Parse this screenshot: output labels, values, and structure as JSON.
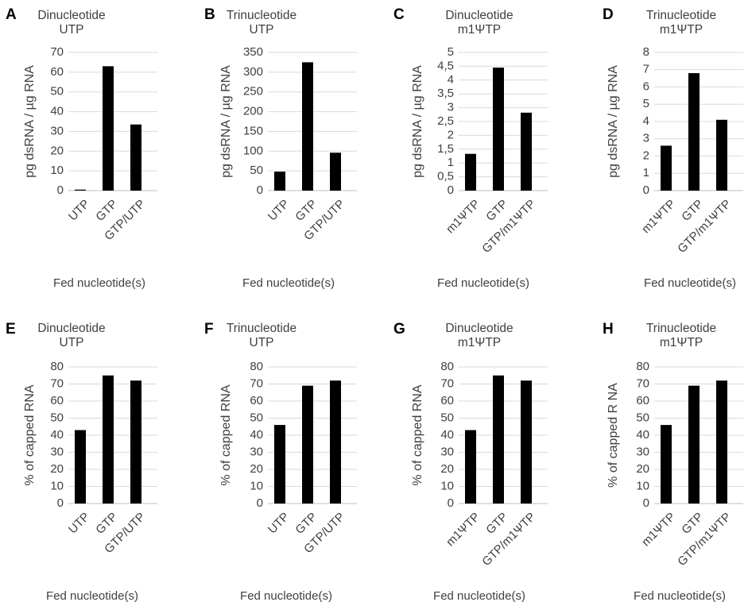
{
  "figure": {
    "background": "#ffffff",
    "bar_color": "#000000",
    "text_color": "#404040"
  },
  "chart_data": [
    {
      "panel": "A",
      "type": "bar",
      "title": [
        "Dinucleotide",
        "UTP"
      ],
      "xlabel": "Fed nucleotide(s)",
      "ylabel": "pg dsRNA / µg RNA",
      "categories": [
        "UTP",
        "GTP",
        "GTP/UTP"
      ],
      "values": [
        0.5,
        63,
        33.5
      ],
      "ylim": [
        0,
        70
      ],
      "yticks": [
        0,
        10,
        20,
        30,
        40,
        50,
        60,
        70
      ],
      "ytick_labels": [
        "0",
        "10",
        "20",
        "30",
        "40",
        "50",
        "60",
        "70"
      ],
      "grid": true
    },
    {
      "panel": "B",
      "type": "bar",
      "title": [
        "Trinucleotide",
        "UTP"
      ],
      "xlabel": "Fed nucleotide(s)",
      "ylabel": "pg dsRNA / µg RNA",
      "categories": [
        "UTP",
        "GTP",
        "GTP/UTP"
      ],
      "values": [
        48,
        325,
        96
      ],
      "ylim": [
        0,
        350
      ],
      "yticks": [
        0,
        50,
        100,
        150,
        200,
        250,
        300,
        350
      ],
      "ytick_labels": [
        "0",
        "50",
        "100",
        "150",
        "200",
        "250",
        "300",
        "350"
      ],
      "grid": true
    },
    {
      "panel": "C",
      "type": "bar",
      "title": [
        "Dinucleotide",
        "m1ΨTP"
      ],
      "xlabel": "Fed nucleotide(s)",
      "ylabel": "pg dsRNA / µg RNA",
      "categories": [
        "m1ΨTP",
        "GTP",
        "GTP/m1ΨTP"
      ],
      "values": [
        1.33,
        4.45,
        2.82
      ],
      "ylim": [
        0,
        5
      ],
      "yticks": [
        0,
        0.5,
        1,
        1.5,
        2,
        2.5,
        3,
        3.5,
        4,
        4.5,
        5
      ],
      "ytick_labels": [
        "0",
        "0,5",
        "1",
        "1,5",
        "2",
        "2,5",
        "3",
        "3,5",
        "4",
        "4,5",
        "5"
      ],
      "grid": true
    },
    {
      "panel": "D",
      "type": "bar",
      "title": [
        "Trinucleotide",
        "m1ΨTP"
      ],
      "xlabel": "Fed nucleotide(s)",
      "ylabel": "pg dsRNA / µg RNA",
      "categories": [
        "m1ΨTP",
        "GTP",
        "GTP/m1ΨTP"
      ],
      "values": [
        2.6,
        6.8,
        4.1
      ],
      "ylim": [
        0,
        8
      ],
      "yticks": [
        0,
        1,
        2,
        3,
        4,
        5,
        6,
        7,
        8
      ],
      "ytick_labels": [
        "0",
        "1",
        "2",
        "3",
        "4",
        "5",
        "6",
        "7",
        "8"
      ],
      "grid": true
    },
    {
      "panel": "E",
      "type": "bar",
      "title": [
        "Dinucleotide",
        "UTP"
      ],
      "xlabel": "Fed nucleotide(s)",
      "ylabel": "% of capped RNA",
      "categories": [
        "UTP",
        "GTP",
        "GTP/UTP"
      ],
      "values": [
        43,
        75,
        72
      ],
      "ylim": [
        0,
        80
      ],
      "yticks": [
        0,
        10,
        20,
        30,
        40,
        50,
        60,
        70,
        80
      ],
      "ytick_labels": [
        "0",
        "10",
        "20",
        "30",
        "40",
        "50",
        "60",
        "70",
        "80"
      ],
      "grid": true
    },
    {
      "panel": "F",
      "type": "bar",
      "title": [
        "Trinucleotide",
        "UTP"
      ],
      "xlabel": "Fed nucleotide(s)",
      "ylabel": "% of capped RNA",
      "categories": [
        "UTP",
        "GTP",
        "GTP/UTP"
      ],
      "values": [
        46,
        69,
        72
      ],
      "ylim": [
        0,
        80
      ],
      "yticks": [
        0,
        10,
        20,
        30,
        40,
        50,
        60,
        70,
        80
      ],
      "ytick_labels": [
        "0",
        "10",
        "20",
        "30",
        "40",
        "50",
        "60",
        "70",
        "80"
      ],
      "grid": true
    },
    {
      "panel": "G",
      "type": "bar",
      "title": [
        "Dinucleotide",
        "m1ΨTP"
      ],
      "xlabel": "Fed nucleotide(s)",
      "ylabel": "% of capped RNA",
      "categories": [
        "m1ΨTP",
        "GTP",
        "GTP/m1ΨTP"
      ],
      "values": [
        43,
        75,
        72
      ],
      "ylim": [
        0,
        80
      ],
      "yticks": [
        0,
        10,
        20,
        30,
        40,
        50,
        60,
        70,
        80
      ],
      "ytick_labels": [
        "0",
        "10",
        "20",
        "30",
        "40",
        "50",
        "60",
        "70",
        "80"
      ],
      "grid": true
    },
    {
      "panel": "H",
      "type": "bar",
      "title": [
        "Trinucleotide",
        "m1ΨTP"
      ],
      "xlabel": "Fed nucleotide(s)",
      "ylabel": "% of capped R NA",
      "categories": [
        "m1ΨTP",
        "GTP",
        "GTP/m1ΨTP"
      ],
      "values": [
        46,
        69,
        72
      ],
      "ylim": [
        0,
        80
      ],
      "yticks": [
        0,
        10,
        20,
        30,
        40,
        50,
        60,
        70,
        80
      ],
      "ytick_labels": [
        "0",
        "10",
        "20",
        "30",
        "40",
        "50",
        "60",
        "70",
        "80"
      ],
      "grid": true
    }
  ]
}
